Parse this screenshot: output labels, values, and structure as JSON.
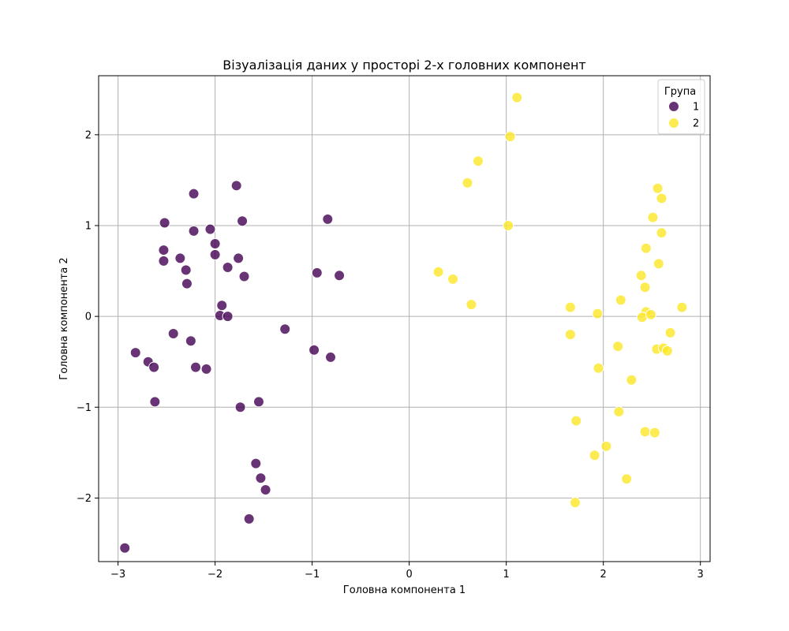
{
  "chart_data": {
    "type": "scatter",
    "title": "Візуалізація даних у просторі 2-х головних компонент",
    "xlabel": "Головна компонента 1",
    "ylabel": "Головна компонента 2",
    "xlim": [
      -3.2,
      3.1
    ],
    "ylim": [
      -2.7,
      2.65
    ],
    "xticks": [
      -3,
      -2,
      -1,
      0,
      1,
      2,
      3
    ],
    "yticks": [
      -2,
      -1,
      0,
      1,
      2
    ],
    "grid": true,
    "legend": {
      "title": "Група",
      "placement": "top-right"
    },
    "series": [
      {
        "name": "1",
        "color": "#440154",
        "points": [
          [
            -2.22,
            1.35
          ],
          [
            -1.78,
            1.44
          ],
          [
            -2.52,
            1.03
          ],
          [
            -1.72,
            1.05
          ],
          [
            -0.84,
            1.07
          ],
          [
            -2.22,
            0.94
          ],
          [
            -2.05,
            0.96
          ],
          [
            -2.0,
            0.8
          ],
          [
            -2.53,
            0.73
          ],
          [
            -2.0,
            0.68
          ],
          [
            -2.53,
            0.61
          ],
          [
            -2.36,
            0.64
          ],
          [
            -1.76,
            0.64
          ],
          [
            -1.87,
            0.54
          ],
          [
            -2.3,
            0.51
          ],
          [
            -0.95,
            0.48
          ],
          [
            -0.72,
            0.45
          ],
          [
            -1.7,
            0.44
          ],
          [
            -2.29,
            0.36
          ],
          [
            -1.93,
            0.12
          ],
          [
            -1.95,
            0.01
          ],
          [
            -1.87,
            0.0
          ],
          [
            -1.28,
            -0.14
          ],
          [
            -2.43,
            -0.19
          ],
          [
            -2.25,
            -0.27
          ],
          [
            -2.82,
            -0.4
          ],
          [
            -0.98,
            -0.37
          ],
          [
            -0.81,
            -0.45
          ],
          [
            -2.69,
            -0.5
          ],
          [
            -2.63,
            -0.56
          ],
          [
            -2.2,
            -0.56
          ],
          [
            -2.09,
            -0.58
          ],
          [
            -2.62,
            -0.94
          ],
          [
            -1.55,
            -0.94
          ],
          [
            -1.74,
            -1.0
          ],
          [
            -1.58,
            -1.62
          ],
          [
            -1.53,
            -1.78
          ],
          [
            -1.48,
            -1.91
          ],
          [
            -1.65,
            -2.23
          ],
          [
            -2.93,
            -2.55
          ]
        ]
      },
      {
        "name": "2",
        "color": "#fde725",
        "points": [
          [
            1.11,
            2.41
          ],
          [
            1.04,
            1.98
          ],
          [
            0.71,
            1.71
          ],
          [
            0.6,
            1.47
          ],
          [
            1.02,
            1.0
          ],
          [
            0.3,
            0.49
          ],
          [
            0.45,
            0.41
          ],
          [
            0.64,
            0.13
          ],
          [
            2.56,
            1.41
          ],
          [
            2.6,
            1.3
          ],
          [
            2.51,
            1.09
          ],
          [
            2.6,
            0.92
          ],
          [
            2.44,
            0.75
          ],
          [
            2.57,
            0.58
          ],
          [
            2.39,
            0.45
          ],
          [
            2.43,
            0.32
          ],
          [
            2.18,
            0.18
          ],
          [
            1.66,
            0.1
          ],
          [
            2.81,
            0.1
          ],
          [
            1.94,
            0.03
          ],
          [
            2.44,
            0.05
          ],
          [
            2.4,
            -0.01
          ],
          [
            2.49,
            0.02
          ],
          [
            1.66,
            -0.2
          ],
          [
            2.69,
            -0.18
          ],
          [
            2.15,
            -0.33
          ],
          [
            2.55,
            -0.36
          ],
          [
            2.62,
            -0.35
          ],
          [
            2.66,
            -0.38
          ],
          [
            1.95,
            -0.57
          ],
          [
            2.29,
            -0.7
          ],
          [
            2.16,
            -1.05
          ],
          [
            1.72,
            -1.15
          ],
          [
            2.43,
            -1.27
          ],
          [
            2.53,
            -1.28
          ],
          [
            2.03,
            -1.43
          ],
          [
            1.91,
            -1.53
          ],
          [
            2.24,
            -1.79
          ],
          [
            1.71,
            -2.05
          ]
        ]
      }
    ]
  }
}
